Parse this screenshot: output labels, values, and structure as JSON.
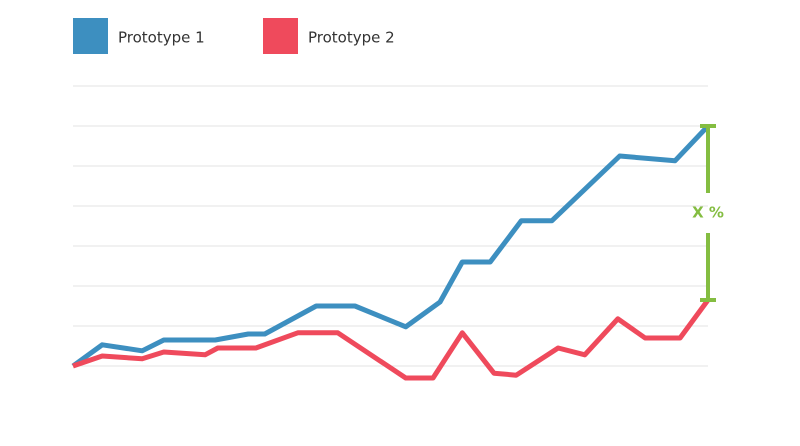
{
  "chart_data": {
    "type": "line",
    "annotation": "X %",
    "annotation_color": "#84bd41",
    "xlim": [
      0,
      100
    ],
    "ylim": [
      0,
      7
    ],
    "yticks": [
      0,
      1,
      2,
      3,
      4,
      5,
      6,
      7
    ],
    "grid": true,
    "legend": "top-left",
    "series": [
      {
        "name": "Prototype 1",
        "color": "#3d8fc0",
        "x": [
          0,
          4.6,
          10.9,
          14.3,
          22.4,
          27.6,
          30.2,
          38.3,
          44.4,
          52.4,
          57.8,
          61.3,
          65.7,
          70.6,
          75.4,
          86.1,
          94.8,
          100
        ],
        "values": [
          0,
          0.53,
          0.38,
          0.65,
          0.65,
          0.8,
          0.8,
          1.5,
          1.5,
          0.98,
          1.6,
          2.6,
          2.6,
          3.63,
          3.63,
          5.25,
          5.13,
          6
        ]
      },
      {
        "name": "Prototype 2",
        "color": "#ef4a5c",
        "x": [
          0,
          4.6,
          10.9,
          14.3,
          20.8,
          22.8,
          28.8,
          35.4,
          41.7,
          52.4,
          56.7,
          61.3,
          66.3,
          69.8,
          76.4,
          80.6,
          85.8,
          90.1,
          95.6,
          100
        ],
        "values": [
          0,
          0.25,
          0.18,
          0.35,
          0.28,
          0.45,
          0.45,
          0.83,
          0.83,
          -0.3,
          -0.3,
          0.83,
          -0.18,
          -0.23,
          0.45,
          0.28,
          1.18,
          0.7,
          0.7,
          1.65
        ]
      }
    ]
  }
}
